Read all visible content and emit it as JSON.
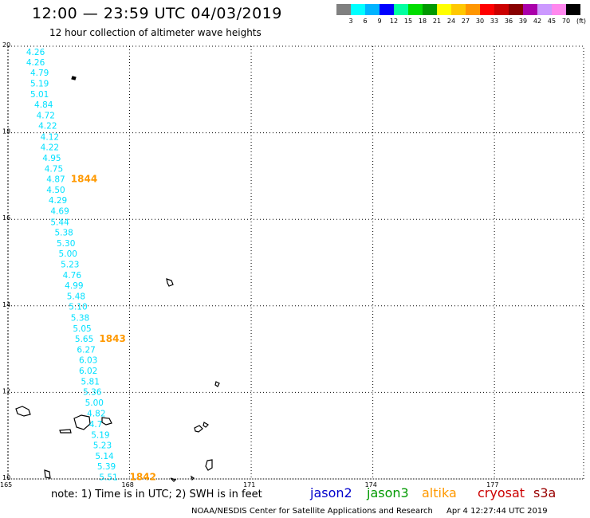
{
  "title": "12:00 — 23:59 UTC 04/03/2019",
  "subtitle": "12 hour collection of altimeter wave heights",
  "legend": {
    "colors": [
      "#808080",
      "#00ffff",
      "#00b4ff",
      "#0000ff",
      "#00ffa0",
      "#00dd00",
      "#009900",
      "#ffff00",
      "#ffc800",
      "#ff9600",
      "#ff0000",
      "#cc0000",
      "#880000",
      "#aa00aa",
      "#cc99ff",
      "#ff88ee",
      "#000000"
    ],
    "labels": [
      "3",
      "6",
      "9",
      "12",
      "15",
      "18",
      "21",
      "24",
      "27",
      "30",
      "33",
      "36",
      "39",
      "42",
      "45",
      "70"
    ],
    "unit": "(ft)"
  },
  "axes": {
    "lat_labels": [
      "20",
      "18",
      "16",
      "14",
      "12",
      "10"
    ],
    "lon_labels": [
      "165",
      "168",
      "171",
      "174",
      "177"
    ]
  },
  "chart_data": {
    "type": "map-track",
    "lat_range": [
      10,
      20
    ],
    "lon_range": [
      165,
      179.2
    ],
    "grid": "dotted",
    "satellite_track": {
      "satellite": "altika",
      "color": "#00e0ff",
      "label_color": "#ff9900",
      "points": [
        {
          "lat": 19.8,
          "lon": 165.45,
          "v": "4.26"
        },
        {
          "lat": 19.56,
          "lon": 165.45,
          "v": "4.26"
        },
        {
          "lat": 19.32,
          "lon": 165.55,
          "v": "4.79"
        },
        {
          "lat": 19.07,
          "lon": 165.55,
          "v": "5.19"
        },
        {
          "lat": 18.82,
          "lon": 165.55,
          "v": "5.01"
        },
        {
          "lat": 18.58,
          "lon": 165.65,
          "v": "4.84"
        },
        {
          "lat": 18.33,
          "lon": 165.7,
          "v": "4.72"
        },
        {
          "lat": 18.09,
          "lon": 165.75,
          "v": "4.22"
        },
        {
          "lat": 17.84,
          "lon": 165.8,
          "v": "4.12"
        },
        {
          "lat": 17.6,
          "lon": 165.8,
          "v": "4.22"
        },
        {
          "lat": 17.35,
          "lon": 165.85,
          "v": "4.95"
        },
        {
          "lat": 17.1,
          "lon": 165.9,
          "v": "4.75"
        },
        {
          "lat": 16.86,
          "lon": 165.95,
          "v": "4.87"
        },
        {
          "lat": 16.61,
          "lon": 165.95,
          "v": "4.50"
        },
        {
          "lat": 16.37,
          "lon": 166.0,
          "v": "4.29"
        },
        {
          "lat": 16.12,
          "lon": 166.05,
          "v": "4.69"
        },
        {
          "lat": 15.87,
          "lon": 166.05,
          "v": "5.44"
        },
        {
          "lat": 15.63,
          "lon": 166.15,
          "v": "5.38"
        },
        {
          "lat": 15.38,
          "lon": 166.2,
          "v": "5.30"
        },
        {
          "lat": 15.14,
          "lon": 166.25,
          "v": "5.00"
        },
        {
          "lat": 14.89,
          "lon": 166.3,
          "v": "5.23"
        },
        {
          "lat": 14.64,
          "lon": 166.35,
          "v": "4.76"
        },
        {
          "lat": 14.4,
          "lon": 166.4,
          "v": "4.99"
        },
        {
          "lat": 14.15,
          "lon": 166.45,
          "v": "5.48"
        },
        {
          "lat": 13.91,
          "lon": 166.5,
          "v": "5.10"
        },
        {
          "lat": 13.66,
          "lon": 166.55,
          "v": "5.38"
        },
        {
          "lat": 13.41,
          "lon": 166.6,
          "v": "5.05"
        },
        {
          "lat": 13.17,
          "lon": 166.65,
          "v": "5.65"
        },
        {
          "lat": 12.92,
          "lon": 166.7,
          "v": "6.27"
        },
        {
          "lat": 12.68,
          "lon": 166.75,
          "v": "6.03"
        },
        {
          "lat": 12.43,
          "lon": 166.75,
          "v": "6.02"
        },
        {
          "lat": 12.18,
          "lon": 166.8,
          "v": "5.81"
        },
        {
          "lat": 11.94,
          "lon": 166.85,
          "v": "5.36"
        },
        {
          "lat": 11.69,
          "lon": 166.9,
          "v": "5.00"
        },
        {
          "lat": 11.45,
          "lon": 166.95,
          "v": "4.82"
        },
        {
          "lat": 11.2,
          "lon": 167.0,
          "v": "4.7"
        },
        {
          "lat": 10.95,
          "lon": 167.05,
          "v": "5.19"
        },
        {
          "lat": 10.71,
          "lon": 167.1,
          "v": "5.23"
        },
        {
          "lat": 10.46,
          "lon": 167.15,
          "v": "5.14"
        },
        {
          "lat": 10.22,
          "lon": 167.2,
          "v": "5.39"
        },
        {
          "lat": 9.97,
          "lon": 167.25,
          "v": "5.51"
        }
      ],
      "time_labels": [
        {
          "lat": 16.86,
          "lon": 166.55,
          "t": "1844"
        },
        {
          "lat": 13.17,
          "lon": 167.25,
          "t": "1843"
        },
        {
          "lat": 9.97,
          "lon": 168.0,
          "t": "1842"
        }
      ]
    }
  },
  "footer": {
    "note": "note:  1) Time is in UTC;  2) SWH is in feet",
    "satellites": [
      {
        "name": "jason2",
        "color": "#0000cc"
      },
      {
        "name": "jason3",
        "color": "#009900"
      },
      {
        "name": "altika",
        "color": "#ff9900"
      },
      {
        "name": "cryosat",
        "color": "#cc0000"
      },
      {
        "name": "s3a",
        "color": "#990000"
      }
    ],
    "credit": "NOAA/NESDIS Center for Satellite Applications and Research",
    "timestamp": "Apr  4 12:27:44 UTC 2019"
  }
}
